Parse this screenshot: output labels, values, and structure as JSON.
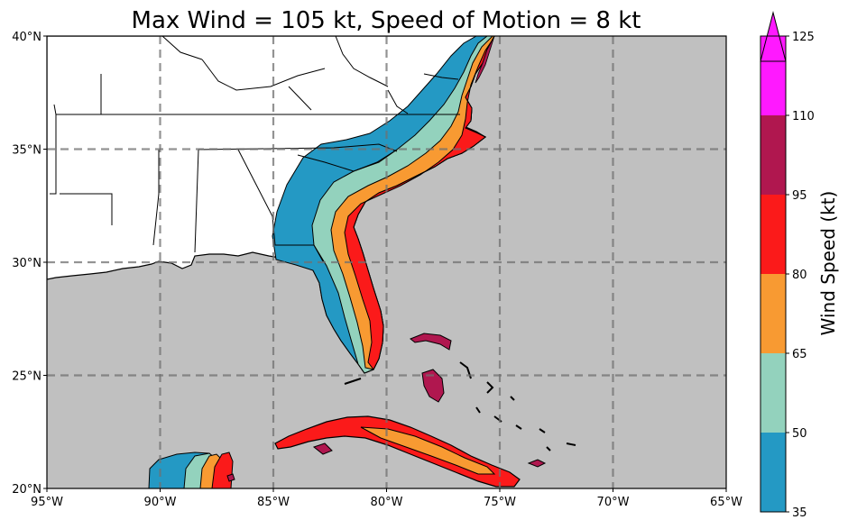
{
  "title": "Max Wind = 105 kt, Speed of Motion = 8 kt",
  "map": {
    "lon_range": [
      -95,
      -65
    ],
    "lat_range": [
      20,
      40
    ],
    "lon_ticks": [
      {
        "value": -95,
        "label": "95°W"
      },
      {
        "value": -90,
        "label": "90°W"
      },
      {
        "value": -85,
        "label": "85°W"
      },
      {
        "value": -80,
        "label": "80°W"
      },
      {
        "value": -75,
        "label": "75°W"
      },
      {
        "value": -70,
        "label": "70°W"
      },
      {
        "value": -65,
        "label": "65°W"
      }
    ],
    "lat_ticks": [
      {
        "value": 20,
        "label": "20°N"
      },
      {
        "value": 25,
        "label": "25°N"
      },
      {
        "value": 30,
        "label": "30°N"
      },
      {
        "value": 35,
        "label": "35°N"
      },
      {
        "value": 40,
        "label": "40°N"
      }
    ],
    "gridlines": "dashed gray",
    "ocean_color": "#c0c0c0",
    "land_color": "#ffffff"
  },
  "colorbar": {
    "label": "Wind Speed (kt)",
    "boundaries": [
      35,
      50,
      65,
      80,
      95,
      110,
      125
    ],
    "tick_labels": [
      "35",
      "50",
      "65",
      "80",
      "95",
      "110",
      "125"
    ],
    "colors": [
      "#2499c4",
      "#93d2bd",
      "#f89a32",
      "#fb1a1a",
      "#b0174f",
      "#ff19ff"
    ],
    "extend": "max"
  }
}
